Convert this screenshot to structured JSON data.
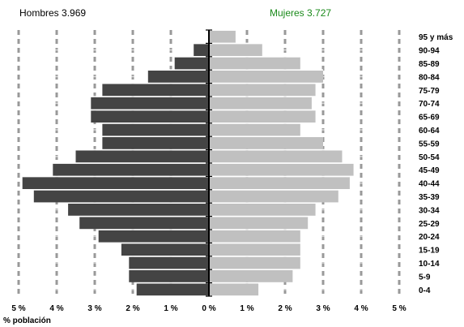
{
  "chart_data": {
    "type": "bar",
    "orientation": "horizontal-butterfly",
    "title_men": "Hombres 3.969",
    "title_women": "Mujeres 3.727",
    "categories": [
      "0-4",
      "5-9",
      "10-14",
      "15-19",
      "20-24",
      "25-29",
      "30-34",
      "35-39",
      "40-44",
      "45-49",
      "50-54",
      "55-59",
      "60-64",
      "65-69",
      "70-74",
      "75-79",
      "80-84",
      "85-89",
      "90-94",
      "95 y más"
    ],
    "series": [
      {
        "name": "Hombres",
        "color": "#444444",
        "values": [
          1.9,
          2.1,
          2.1,
          2.3,
          2.9,
          3.4,
          3.7,
          4.6,
          4.9,
          4.1,
          3.5,
          2.8,
          2.8,
          3.1,
          3.1,
          2.8,
          1.6,
          0.9,
          0.4,
          0
        ]
      },
      {
        "name": "Mujeres",
        "color": "#c0c0c0",
        "values": [
          1.3,
          2.2,
          2.4,
          2.4,
          2.4,
          2.6,
          2.8,
          3.4,
          3.7,
          3.8,
          3.5,
          3.0,
          2.4,
          2.8,
          2.7,
          2.8,
          3.0,
          2.4,
          1.4,
          0.7
        ]
      }
    ],
    "xlim": [
      -5,
      5
    ],
    "x_ticks": [
      -5,
      -4,
      -3,
      -2,
      -1,
      0,
      1,
      2,
      3,
      4,
      5
    ],
    "tick_labels": [
      "5 %",
      "4 %",
      "3 %",
      "2 %",
      "1 %",
      "0 %",
      "1 %",
      "2 %",
      "3 %",
      "4 %",
      "5 %"
    ],
    "xlabel": "% población",
    "grid": true,
    "colors": {
      "women_title": "#1a8a1a",
      "grid": "#999999",
      "axis": "#000000"
    }
  }
}
